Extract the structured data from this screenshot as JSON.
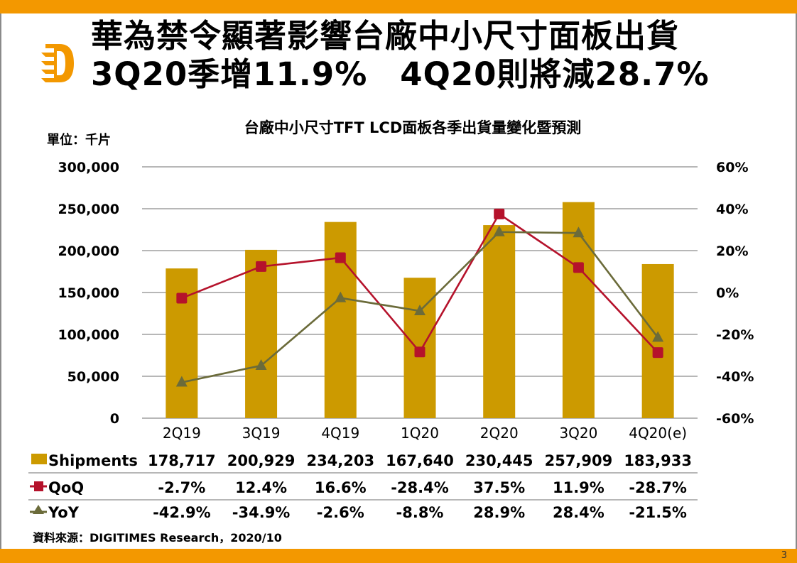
{
  "header": {
    "headline_line1": "華為禁令顯著影響台廠中小尺寸面板出貨",
    "headline_line2": "3Q20季增11.9%　4Q20則將減28.7%"
  },
  "unit_label": "單位：千片",
  "source": "資料來源：DIGITIMES Research，2020/10",
  "page_number": "3",
  "colors": {
    "accent": "#f39800",
    "shipments": "#cc9a00",
    "qoq": "#b5122b",
    "yoy": "#6b6b3a",
    "gridline": "#8c8c8c"
  },
  "chart_data": {
    "type": "bar",
    "title": "台廠中小尺寸TFT LCD面板各季出貨量變化暨預測",
    "xlabel": "",
    "ylabel": "單位：千片",
    "categories": [
      "2Q19",
      "3Q19",
      "4Q19",
      "1Q20",
      "2Q20",
      "3Q20",
      "4Q20(e)"
    ],
    "y_left": {
      "range": [
        0,
        300000
      ],
      "ticks": [
        0,
        50000,
        100000,
        150000,
        200000,
        250000,
        300000
      ],
      "tick_labels": [
        "0",
        "50,000",
        "100,000",
        "150,000",
        "200,000",
        "250,000",
        "300,000"
      ]
    },
    "y_right": {
      "range": [
        -60,
        60
      ],
      "ticks": [
        -60,
        -40,
        -20,
        0,
        20,
        40,
        60
      ],
      "tick_labels": [
        "-60%",
        "-40%",
        "-20%",
        "0%",
        "20%",
        "40%",
        "60%"
      ]
    },
    "grid": true,
    "series": [
      {
        "name": "Shipments",
        "type": "bar",
        "axis": "left",
        "values": [
          178717,
          200929,
          234203,
          167640,
          230445,
          257909,
          183933
        ],
        "labels": [
          "178,717",
          "200,929",
          "234,203",
          "167,640",
          "230,445",
          "257,909",
          "183,933"
        ]
      },
      {
        "name": "QoQ",
        "type": "line",
        "axis": "right",
        "marker": "square",
        "values": [
          -2.7,
          12.4,
          16.6,
          -28.4,
          37.5,
          11.9,
          -28.7
        ],
        "labels": [
          "-2.7%",
          "12.4%",
          "16.6%",
          "-28.4%",
          "37.5%",
          "11.9%",
          "-28.7%"
        ]
      },
      {
        "name": "YoY",
        "type": "line",
        "axis": "right",
        "marker": "triangle",
        "values": [
          -42.9,
          -34.9,
          -2.6,
          -8.8,
          28.9,
          28.4,
          -21.5
        ],
        "labels": [
          "-42.9%",
          "-34.9%",
          "-2.6%",
          "-8.8%",
          "28.9%",
          "28.4%",
          "-21.5%"
        ]
      }
    ],
    "legend": "data-table-below"
  }
}
